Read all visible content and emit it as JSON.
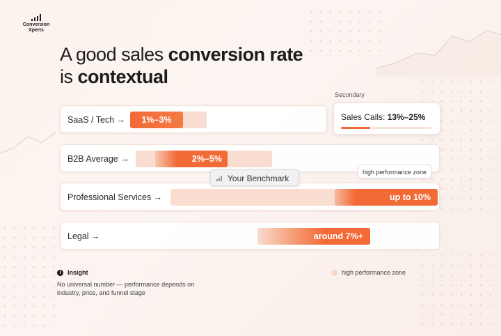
{
  "logo": {
    "line1": "Conversion",
    "line2": "Xperts"
  },
  "title": {
    "line1_prefix": "A good sales ",
    "line1_bold": "conversion rate",
    "line2_prefix": "is ",
    "line2_bold": "contextual"
  },
  "secondary": {
    "heading": "Secondary",
    "label": "Sales Calls: ",
    "value": "13%–25%",
    "progress_fraction": 0.32
  },
  "rows": [
    {
      "label": "SaaS / Tech →",
      "bar_label": "1%–3%"
    },
    {
      "label": "B2B Average →",
      "bar_label": "2%–5%"
    },
    {
      "label": "Professional Services →",
      "bar_label": "up to 10%"
    },
    {
      "label": "Legal →",
      "bar_label": "around 7%+"
    }
  ],
  "benchmark": {
    "label": "Your Benchmark",
    "icon": "signal-bars-icon"
  },
  "high_performance_tag": "high performance zone",
  "insight": {
    "icon": "info-icon",
    "heading": "Insight",
    "body": "No universal number — performance depends on industry, price, and funnel stage"
  },
  "legend": {
    "label": "high performance zone",
    "color": "#f8d7c8"
  },
  "colors": {
    "accent": "#f26a36",
    "track": "#f9ddd1",
    "background": "#fbf4f0"
  }
}
